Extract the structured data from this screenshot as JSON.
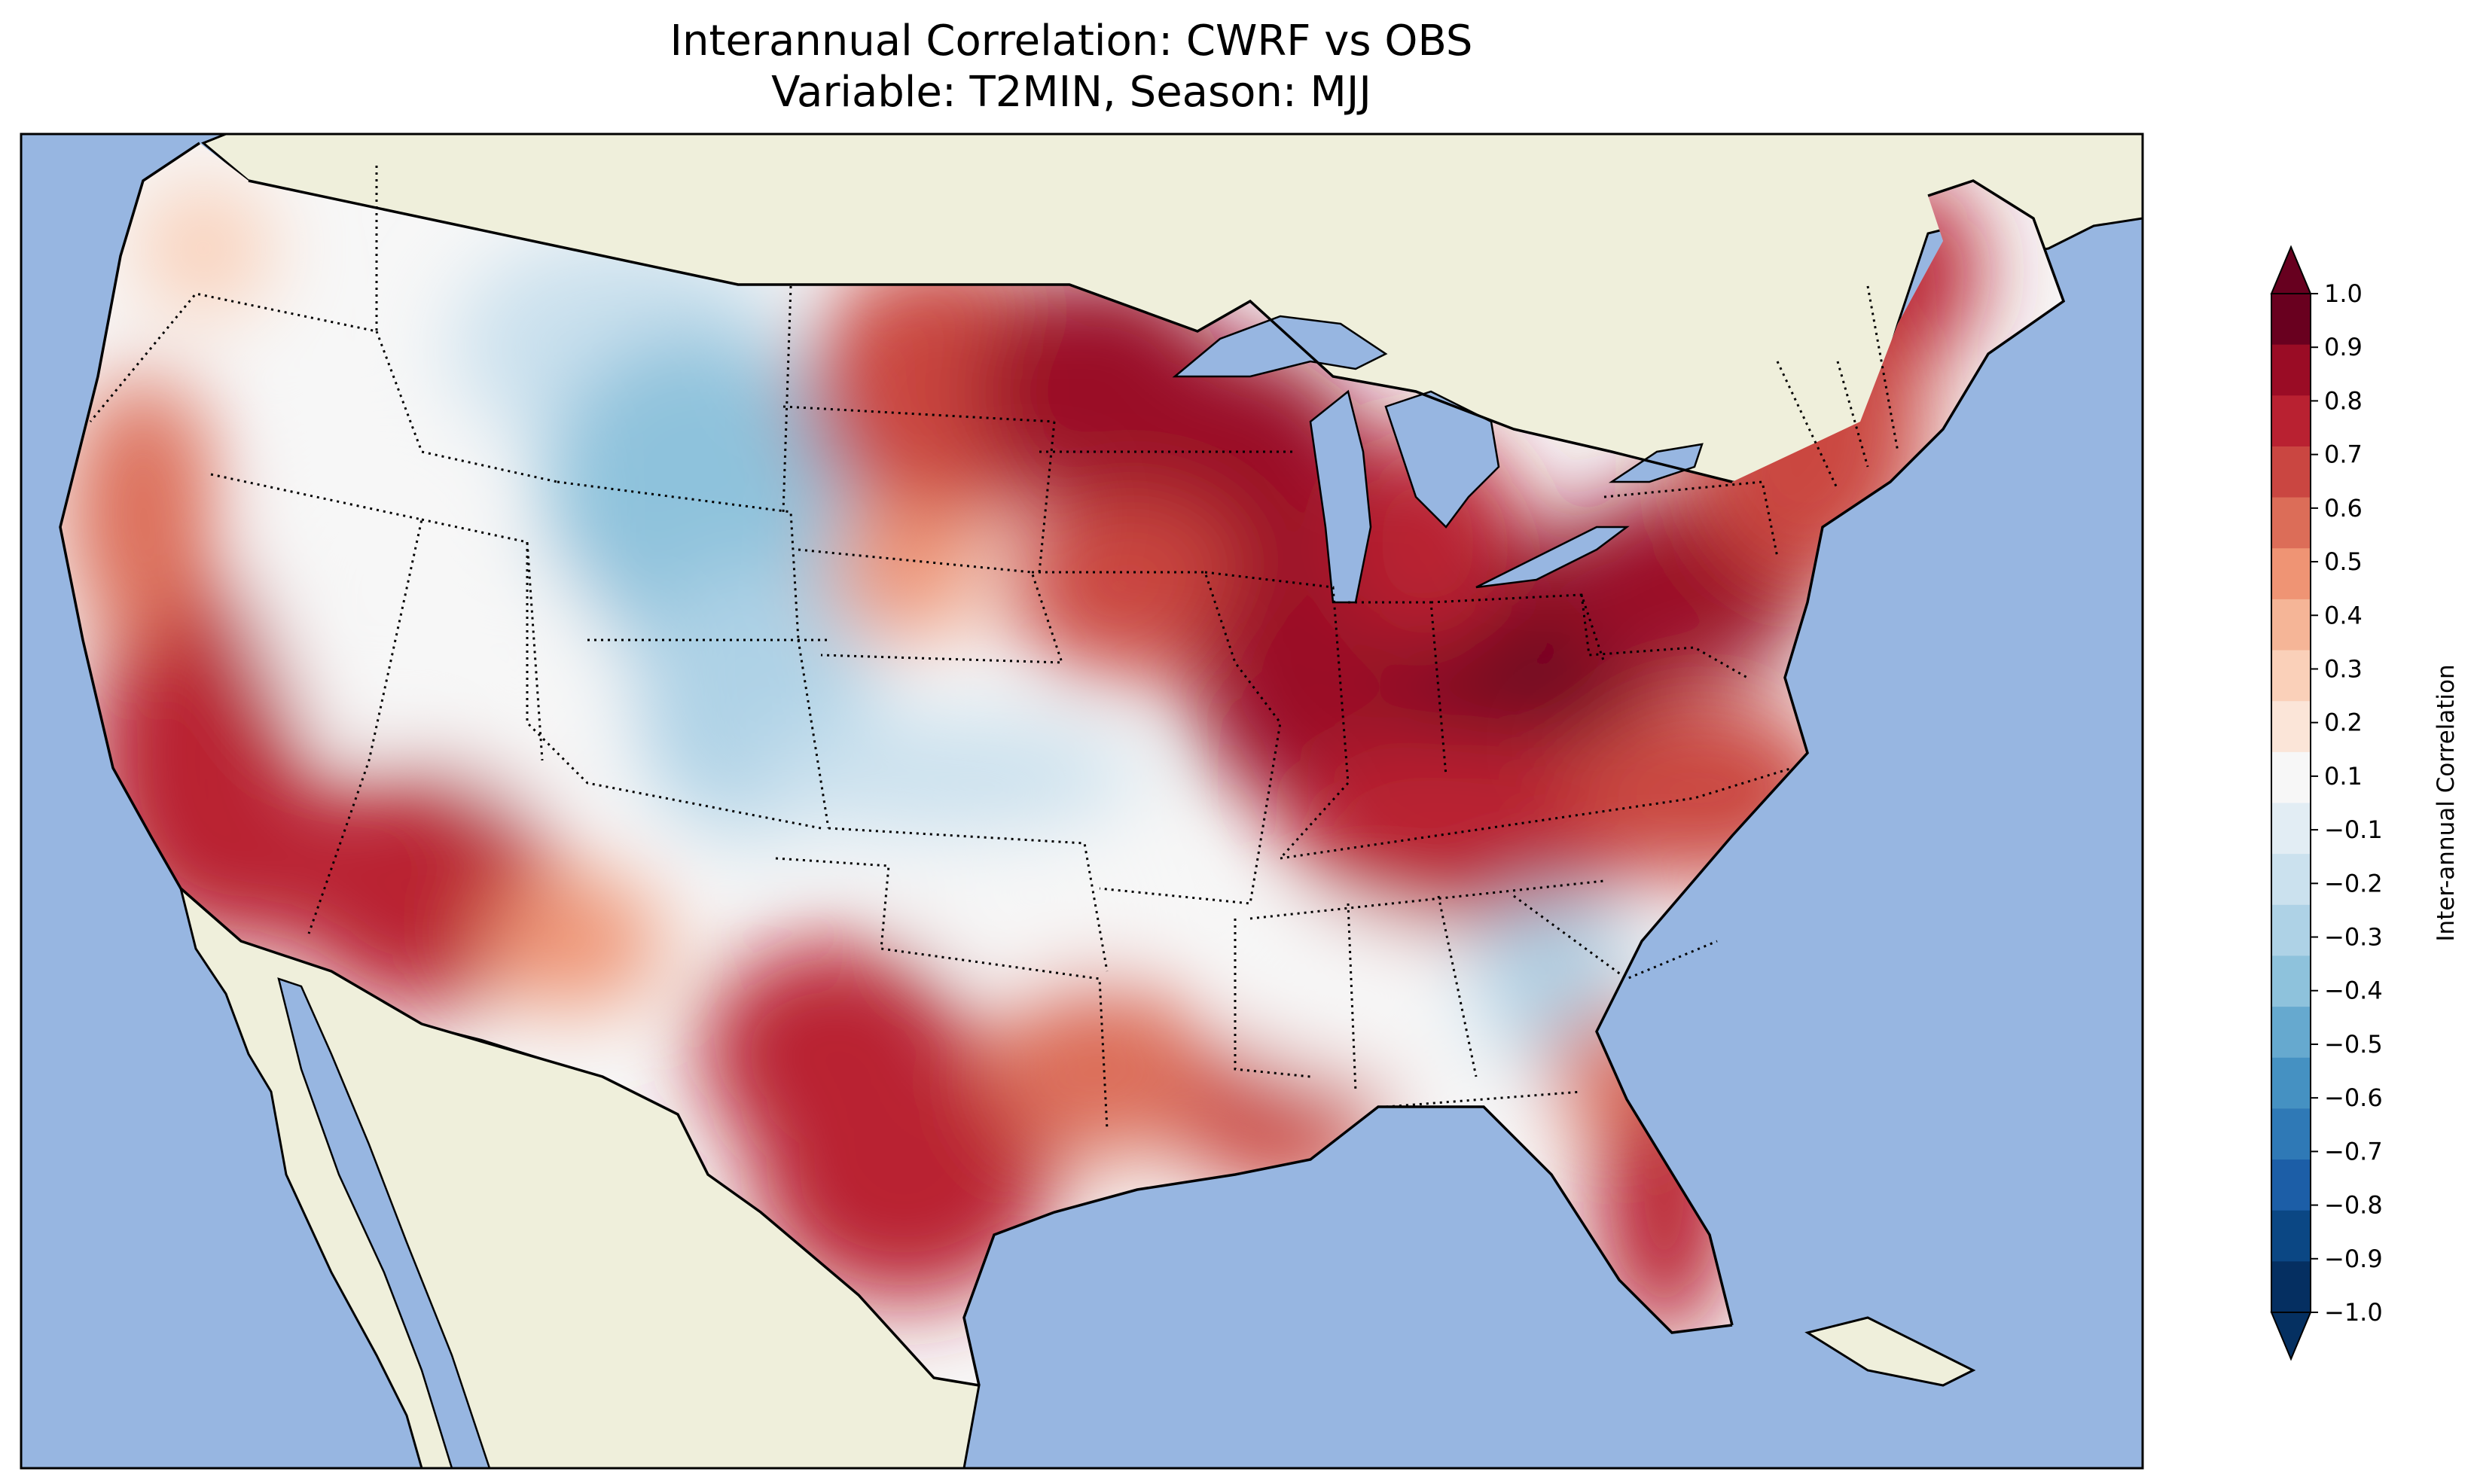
{
  "title": {
    "line1": "Interannual Correlation: CWRF vs OBS",
    "line2": "Variable: T2MIN, Season: MJJ"
  },
  "colors": {
    "ocean": "#97b6e1",
    "land": "#efefdb",
    "border": "#000000"
  },
  "colorbar": {
    "label": "Inter-annual Correlation",
    "ticks": [
      "1.0",
      "0.9",
      "0.8",
      "0.7",
      "0.6",
      "0.5",
      "0.4",
      "0.3",
      "0.2",
      "0.1",
      "−0.1",
      "−0.2",
      "−0.3",
      "−0.4",
      "−0.5",
      "−0.6",
      "−0.7",
      "−0.8",
      "−0.9",
      "−1.0"
    ],
    "colors": [
      "#69001f",
      "#9a0c25",
      "#b92131",
      "#ca4641",
      "#dc6d58",
      "#ef9474",
      "#f5b597",
      "#fad0b9",
      "#fbe5d8",
      "#f7f7f7",
      "#e2edf4",
      "#cbe1ee",
      "#aed2e6",
      "#8ec2dc",
      "#66a9cf",
      "#4591c2",
      "#2f79b6",
      "#1c5ea7",
      "#0b4784",
      "#052f61"
    ],
    "extend_high": "#67001f",
    "extend_low": "#053061"
  }
}
